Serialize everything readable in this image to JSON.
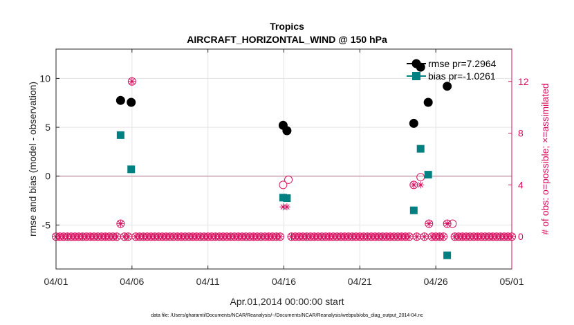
{
  "chart_data": {
    "type": "scatter",
    "title": "Tropics",
    "subtitle": "AIRCRAFT_HORIZONTAL_WIND @ 150 hPa",
    "xlabel": "Apr.01,2014 00:00:00 start",
    "ylabel_left": "rmse and bias (model - observation)",
    "ylabel_right": "# of obs: o=possible; ×=assimilated",
    "footnote": "data file: /Users/gharamti/Documents/NCAR/Reanalysis/~/Documents/NCAR/Reanalysis/webpub/obs_diag_output_2014-04.nc",
    "x_range": [
      1,
      31
    ],
    "x_tick_values": [
      1,
      6,
      11,
      16,
      21,
      26,
      31
    ],
    "x_tick_labels": [
      "04/01",
      "04/06",
      "04/11",
      "04/16",
      "04/21",
      "04/26",
      "05/01"
    ],
    "ylim_left": [
      -9.5,
      13
    ],
    "ylim_right": [
      -2.5,
      14.5
    ],
    "left_ticks": [
      -5,
      0,
      5,
      10
    ],
    "right_ticks": [
      0,
      4,
      8,
      12
    ],
    "zero_line": 0,
    "grid": true,
    "legend_position": "top-right",
    "series": [
      {
        "name": "rmse pr=7.2964",
        "axis": "left",
        "color": "#000000",
        "marker": "circle-filled",
        "x": [
          5.25,
          5.95,
          15.95,
          16.2,
          24.55,
          25.0,
          25.5,
          26.75
        ],
        "values": [
          7.75,
          7.55,
          5.2,
          4.65,
          5.4,
          11.15,
          7.55,
          9.2
        ]
      },
      {
        "name": "bias pr=-1.0261",
        "axis": "left",
        "color": "#008080",
        "marker": "square-filled",
        "x": [
          5.25,
          5.95,
          15.95,
          16.2,
          24.55,
          25.0,
          25.5,
          26.75
        ],
        "values": [
          4.2,
          0.7,
          -2.2,
          -2.25,
          -3.5,
          2.8,
          0.15,
          -8.1
        ]
      },
      {
        "name": "obs possible",
        "axis": "right",
        "color": "#d6105e",
        "marker": "circle-open",
        "zero_count_dates": "every sample not listed below plots at 0",
        "x": [
          5.25,
          6.0,
          15.95,
          16.3,
          24.55,
          25.0,
          25.55,
          26.75,
          27.1
        ],
        "values": [
          1,
          12,
          4,
          4.4,
          4,
          4.6,
          1,
          1,
          1
        ]
      },
      {
        "name": "obs assimilated",
        "axis": "right",
        "color": "#d6105e",
        "marker": "asterisk",
        "x": [
          5.25,
          6.0,
          15.95,
          16.2,
          24.55,
          25.0,
          25.55,
          26.75
        ],
        "values": [
          1,
          12,
          2.3,
          2.3,
          4,
          4,
          1,
          1
        ]
      }
    ]
  }
}
